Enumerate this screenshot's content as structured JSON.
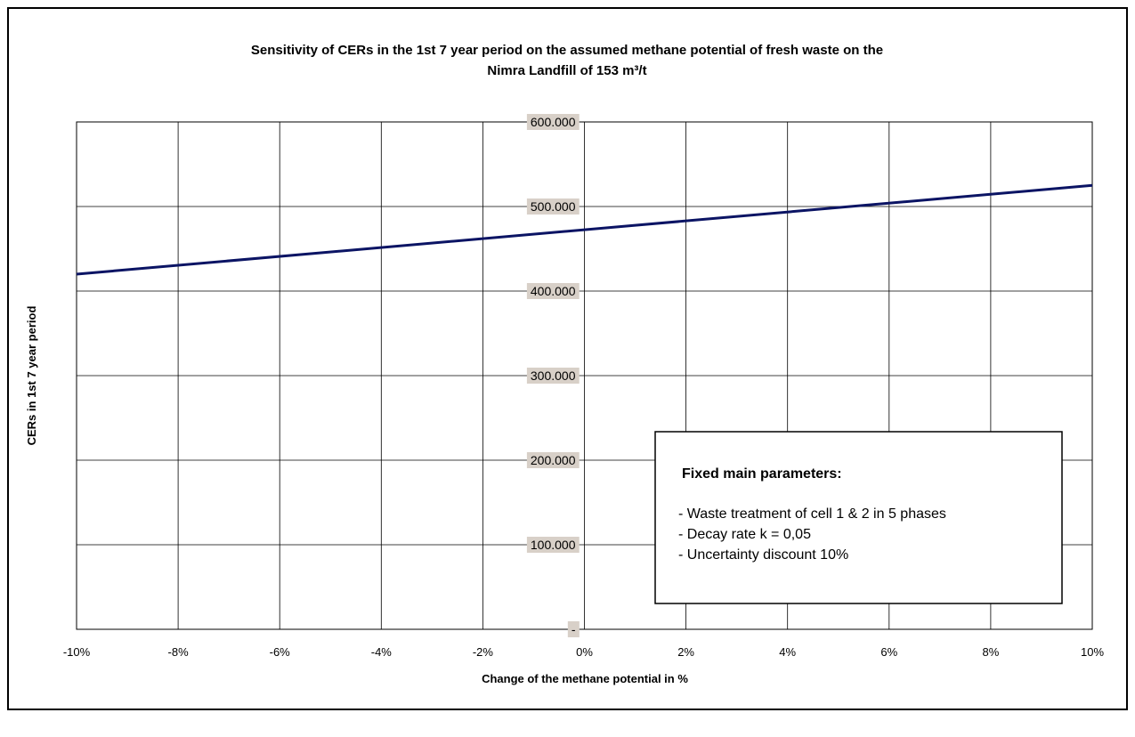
{
  "chart_data": {
    "type": "line",
    "title": "Sensitivity of CERs in the 1st 7 year period on the assumed methane potential of fresh waste on the",
    "subtitle": "Nimra Landfill of 153 m³/t",
    "xlabel": "Change of the methane potential in %",
    "ylabel": "CERs in 1st 7 year period",
    "x_ticks": [
      -10,
      -8,
      -6,
      -4,
      -2,
      0,
      2,
      4,
      6,
      8,
      10
    ],
    "x_tick_labels": [
      "-10%",
      "-8%",
      "-6%",
      "-4%",
      "-2%",
      "0%",
      "2%",
      "4%",
      "6%",
      "8%",
      "10%"
    ],
    "y_ticks": [
      0,
      100000,
      200000,
      300000,
      400000,
      500000,
      600000
    ],
    "y_tick_labels": [
      "-",
      "100.000",
      "200.000",
      "300.000",
      "400.000",
      "500.000",
      "600.000"
    ],
    "xlim": [
      -10,
      10
    ],
    "ylim": [
      0,
      600000
    ],
    "grid": true,
    "series": [
      {
        "x": [
          -10,
          10
        ],
        "y": [
          420000,
          525000
        ],
        "color": "#0b1464"
      }
    ]
  },
  "annotation_box": {
    "title": "Fixed main parameters:",
    "items": [
      "- Waste treatment of cell 1 & 2 in 5 phases",
      "- Decay rate k = 0,05",
      "- Uncertainty discount 10%"
    ]
  },
  "colors": {
    "line": "#0b1464",
    "tick_label_bg": "#d8d0c8",
    "grid": "#000000"
  }
}
